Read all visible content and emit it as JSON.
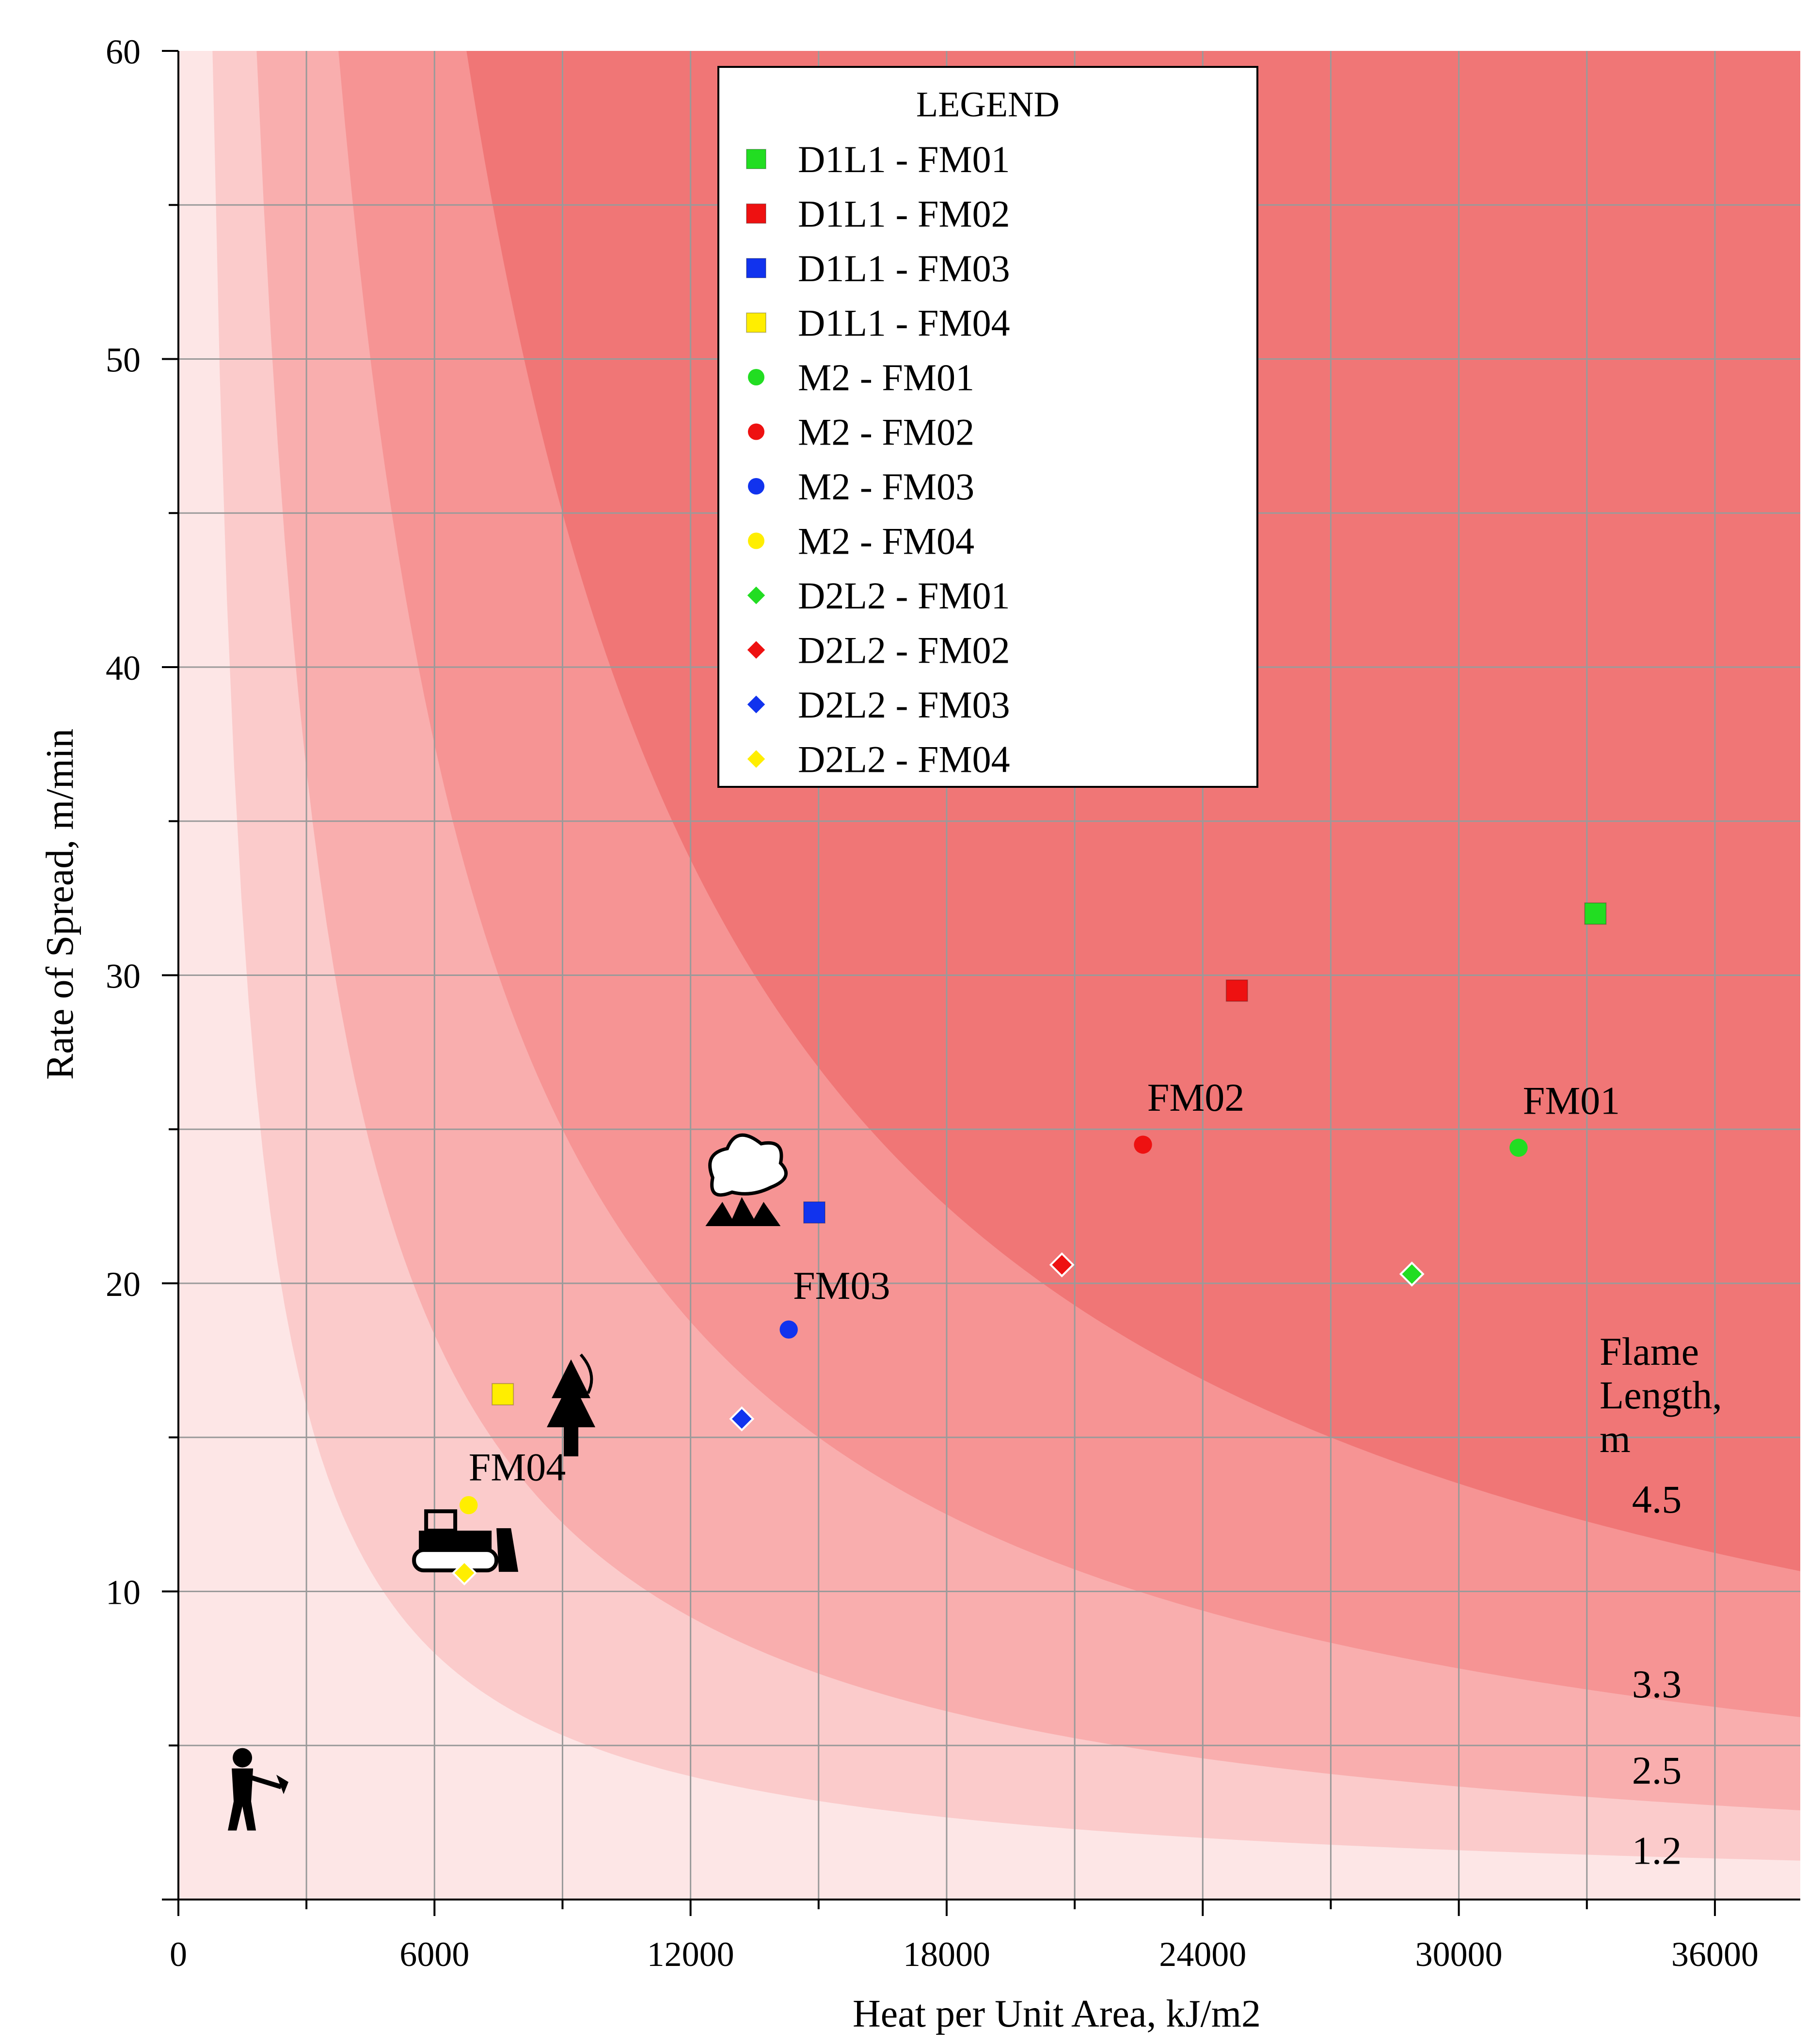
{
  "chart_data": {
    "type": "scatter",
    "title": "",
    "xlabel": "Heat per Unit Area, kJ/m2",
    "ylabel": "Rate of Spread, m/min",
    "xlim": [
      0,
      38000
    ],
    "ylim": [
      0,
      60
    ],
    "x_major_ticks": [
      0,
      6000,
      12000,
      18000,
      24000,
      30000,
      36000
    ],
    "x_minor_step": 3000,
    "y_major_ticks": [
      0,
      10,
      20,
      30,
      40,
      50,
      60
    ],
    "y_minor_step": 5,
    "x_tick_labels": [
      "0",
      "6000",
      "12000",
      "18000",
      "24000",
      "30000",
      "36000"
    ],
    "y_tick_labels": [
      "",
      "10",
      "20",
      "30",
      "40",
      "50",
      "60"
    ],
    "grid": true,
    "legend": {
      "title": "LEGEND",
      "placement": "top-center",
      "entries": [
        {
          "label": "D1L1 - FM01",
          "marker": "square",
          "color": "#22dd22"
        },
        {
          "label": "D1L1 - FM02",
          "marker": "square",
          "color": "#ee1111"
        },
        {
          "label": "D1L1 - FM03",
          "marker": "square",
          "color": "#1133ee"
        },
        {
          "label": "D1L1 - FM04",
          "marker": "square",
          "color": "#ffee00"
        },
        {
          "label": "M2 - FM01",
          "marker": "circle",
          "color": "#22dd22"
        },
        {
          "label": "M2 - FM02",
          "marker": "circle",
          "color": "#ee1111"
        },
        {
          "label": "M2 - FM03",
          "marker": "circle",
          "color": "#1133ee"
        },
        {
          "label": "M2 - FM04",
          "marker": "circle",
          "color": "#ffee00"
        },
        {
          "label": "D2L2 - FM01",
          "marker": "diamond",
          "color": "#22dd22"
        },
        {
          "label": "D2L2 - FM02",
          "marker": "diamond",
          "color": "#ee1111"
        },
        {
          "label": "D2L2 - FM03",
          "marker": "diamond",
          "color": "#1133ee"
        },
        {
          "label": "D2L2 - FM04",
          "marker": "diamond",
          "color": "#ffee00"
        }
      ]
    },
    "points": [
      {
        "series": "D1L1 - FM01",
        "x": 33200,
        "y": 32.0
      },
      {
        "series": "D1L1 - FM02",
        "x": 24800,
        "y": 29.5
      },
      {
        "series": "D1L1 - FM03",
        "x": 14900,
        "y": 22.3
      },
      {
        "series": "D1L1 - FM04",
        "x": 7600,
        "y": 16.4
      },
      {
        "series": "M2 - FM01",
        "x": 31400,
        "y": 24.4
      },
      {
        "series": "M2 - FM02",
        "x": 22600,
        "y": 24.5
      },
      {
        "series": "M2 - FM03",
        "x": 14300,
        "y": 18.5
      },
      {
        "series": "M2 - FM04",
        "x": 6800,
        "y": 12.8
      },
      {
        "series": "D2L2 - FM01",
        "x": 28900,
        "y": 20.3
      },
      {
        "series": "D2L2 - FM02",
        "x": 20700,
        "y": 20.6
      },
      {
        "series": "D2L2 - FM03",
        "x": 13200,
        "y": 15.6
      },
      {
        "series": "D2L2 - FM04",
        "x": 6700,
        "y": 10.6
      }
    ],
    "annotations": [
      {
        "text": "FM01",
        "x": 31500,
        "y": 25.5
      },
      {
        "text": "FM02",
        "x": 22700,
        "y": 25.6
      },
      {
        "text": "FM03",
        "x": 14400,
        "y": 19.5
      },
      {
        "text": "FM04",
        "x": 6800,
        "y": 13.6
      }
    ],
    "flame_length": {
      "title_lines": [
        "Flame",
        "Length,",
        "m"
      ],
      "band_colors": [
        "#fde6e6",
        "#fbcbcb",
        "#f9aeae",
        "#f69494",
        "#f07676"
      ],
      "bands": [
        {
          "label": "1.2",
          "value": 1.2,
          "label_y": 1.6
        },
        {
          "label": "2.5",
          "value": 2.5,
          "label_y": 4.2
        },
        {
          "label": "3.3",
          "value": 3.3,
          "label_y": 7.0
        },
        {
          "label": "4.5",
          "value": 4.5,
          "label_y": 13.0
        }
      ],
      "boundary_constants": [
        48000,
        110000,
        225000,
        405000
      ]
    },
    "icons": [
      {
        "name": "hand-crew-icon",
        "x": 1500,
        "y": 3.5
      },
      {
        "name": "dozer-icon",
        "x": 6600,
        "y": 11.5
      },
      {
        "name": "tree-torching-icon",
        "x": 9200,
        "y": 15.8
      },
      {
        "name": "crown-fire-icon",
        "x": 13200,
        "y": 22.8
      }
    ]
  }
}
